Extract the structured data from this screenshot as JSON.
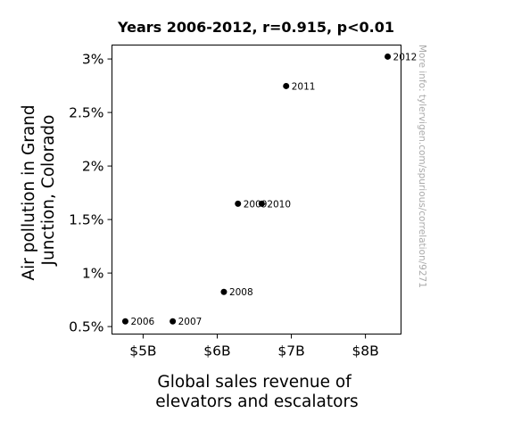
{
  "chart_data": {
    "type": "scatter",
    "title": "Years 2006-2012, r=0.915, p<0.01",
    "xlabel": [
      "Global sales revenue of",
      "elevators and escalators"
    ],
    "ylabel": [
      "Air pollution in Grand",
      "Junction, Colorado"
    ],
    "watermark": "More info: tylervigen.com/spurious/correlation/9271",
    "xlim": [
      4.58,
      8.48
    ],
    "ylim": [
      0.43,
      3.13
    ],
    "xticks": [
      {
        "value": 5,
        "label": "$5B"
      },
      {
        "value": 6,
        "label": "$6B"
      },
      {
        "value": 7,
        "label": "$7B"
      },
      {
        "value": 8,
        "label": "$8B"
      }
    ],
    "yticks": [
      {
        "value": 0.5,
        "label": "0.5%"
      },
      {
        "value": 1.0,
        "label": "1%"
      },
      {
        "value": 1.5,
        "label": "1.5%"
      },
      {
        "value": 2.0,
        "label": "2%"
      },
      {
        "value": 2.5,
        "label": "2.5%"
      },
      {
        "value": 3.0,
        "label": "3%"
      }
    ],
    "points": [
      {
        "label": "2006",
        "x": 4.76,
        "y": 0.549
      },
      {
        "label": "2007",
        "x": 5.4,
        "y": 0.549
      },
      {
        "label": "2008",
        "x": 6.09,
        "y": 0.824
      },
      {
        "label": "2009",
        "x": 6.28,
        "y": 1.648
      },
      {
        "label": "2010",
        "x": 6.6,
        "y": 1.648
      },
      {
        "label": "2011",
        "x": 6.93,
        "y": 2.747
      },
      {
        "label": "2012",
        "x": 8.3,
        "y": 3.022
      }
    ],
    "marker_color": "#000000",
    "grid": false
  }
}
